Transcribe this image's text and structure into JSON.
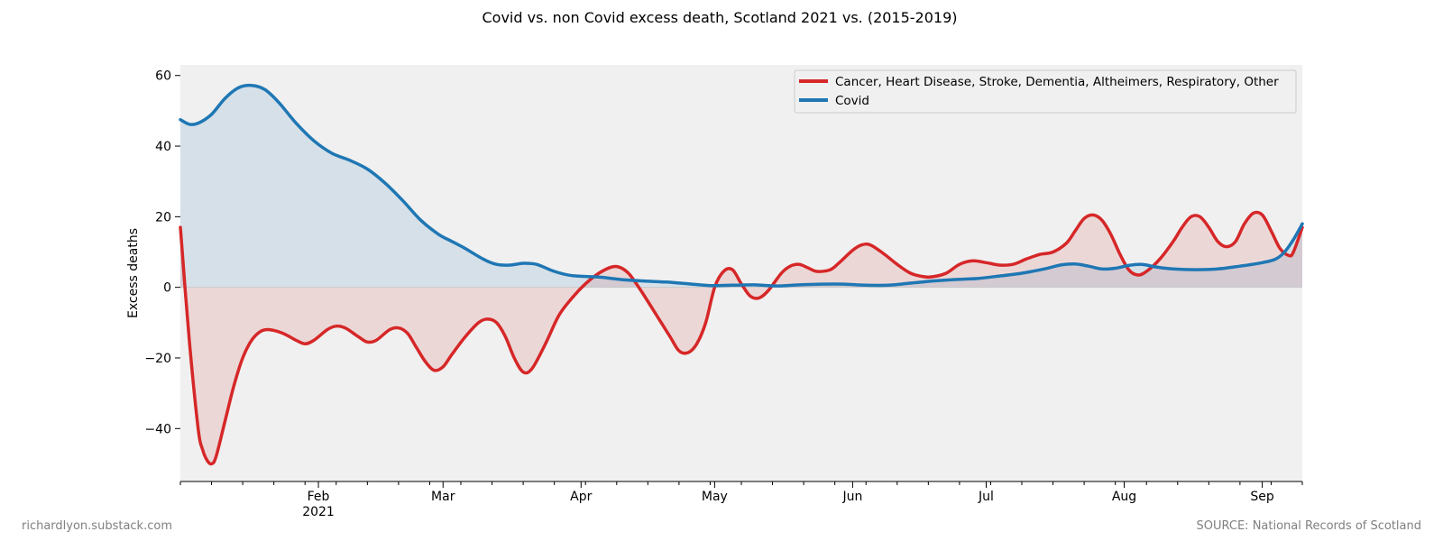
{
  "chart_data": {
    "type": "area",
    "title": "Covid vs. non Covid excess death, Scotland 2021 vs. (2015-2019)",
    "xlabel": "",
    "ylabel": "Excess deaths",
    "ylim": [
      -55,
      63
    ],
    "xlim": [
      "2021-01-01",
      "2021-09-10"
    ],
    "yticks": [
      -40,
      -20,
      0,
      20,
      40,
      60
    ],
    "ytick_labels": [
      "−40",
      "−20",
      "0",
      "20",
      "40",
      "60"
    ],
    "xticks": [
      {
        "date": "2021-02-01",
        "label": "Feb",
        "sublabel": "2021"
      },
      {
        "date": "2021-03-01",
        "label": "Mar",
        "sublabel": ""
      },
      {
        "date": "2021-04-01",
        "label": "Apr",
        "sublabel": ""
      },
      {
        "date": "2021-05-01",
        "label": "May",
        "sublabel": ""
      },
      {
        "date": "2021-06-01",
        "label": "Jun",
        "sublabel": ""
      },
      {
        "date": "2021-07-01",
        "label": "Jul",
        "sublabel": ""
      },
      {
        "date": "2021-08-01",
        "label": "Aug",
        "sublabel": ""
      },
      {
        "date": "2021-09-01",
        "label": "Sep",
        "sublabel": ""
      }
    ],
    "minor_ticks": [
      "2021-01-01",
      "2021-01-08",
      "2021-01-15",
      "2021-01-22",
      "2021-01-29",
      "2021-02-05",
      "2021-02-12",
      "2021-02-19",
      "2021-02-26",
      "2021-03-05",
      "2021-03-12",
      "2021-03-19",
      "2021-03-26",
      "2021-04-02",
      "2021-04-09",
      "2021-04-16",
      "2021-04-23",
      "2021-04-30",
      "2021-05-07",
      "2021-05-14",
      "2021-05-21",
      "2021-05-28",
      "2021-06-04",
      "2021-06-11",
      "2021-06-18",
      "2021-06-25",
      "2021-07-02",
      "2021-07-09",
      "2021-07-16",
      "2021-07-23",
      "2021-07-30",
      "2021-08-06",
      "2021-08-13",
      "2021-08-20",
      "2021-08-27",
      "2021-09-03",
      "2021-09-10"
    ],
    "grid": false,
    "legend_position": "top-right",
    "background": "#f0f0f0",
    "series": [
      {
        "name": "Cancer, Heart Disease, Stroke, Dementia, Altheimers, Respiratory, Other",
        "color": "#d62728",
        "fill": "#d62728",
        "points": [
          [
            "2021-01-01",
            17
          ],
          [
            "2021-01-03",
            -15
          ],
          [
            "2021-01-05",
            -40
          ],
          [
            "2021-01-06",
            -46
          ],
          [
            "2021-01-07",
            -49
          ],
          [
            "2021-01-08",
            -50
          ],
          [
            "2021-01-09",
            -48
          ],
          [
            "2021-01-11",
            -38
          ],
          [
            "2021-01-13",
            -28
          ],
          [
            "2021-01-15",
            -20
          ],
          [
            "2021-01-17",
            -15
          ],
          [
            "2021-01-19",
            -12.5
          ],
          [
            "2021-01-21",
            -12
          ],
          [
            "2021-01-24",
            -13
          ],
          [
            "2021-01-27",
            -15
          ],
          [
            "2021-01-29",
            -16
          ],
          [
            "2021-01-31",
            -15
          ],
          [
            "2021-02-03",
            -12
          ],
          [
            "2021-02-05",
            -11
          ],
          [
            "2021-02-07",
            -11.5
          ],
          [
            "2021-02-10",
            -14
          ],
          [
            "2021-02-12",
            -15.5
          ],
          [
            "2021-02-14",
            -15
          ],
          [
            "2021-02-17",
            -12
          ],
          [
            "2021-02-19",
            -11.5
          ],
          [
            "2021-02-21",
            -13
          ],
          [
            "2021-02-23",
            -17
          ],
          [
            "2021-02-25",
            -21
          ],
          [
            "2021-02-27",
            -23.5
          ],
          [
            "2021-03-01",
            -22.5
          ],
          [
            "2021-03-03",
            -19
          ],
          [
            "2021-03-06",
            -14
          ],
          [
            "2021-03-09",
            -10
          ],
          [
            "2021-03-11",
            -9
          ],
          [
            "2021-03-13",
            -10
          ],
          [
            "2021-03-15",
            -14
          ],
          [
            "2021-03-17",
            -20
          ],
          [
            "2021-03-19",
            -24
          ],
          [
            "2021-03-21",
            -23
          ],
          [
            "2021-03-24",
            -16
          ],
          [
            "2021-03-27",
            -8
          ],
          [
            "2021-03-30",
            -3
          ],
          [
            "2021-04-02",
            1
          ],
          [
            "2021-04-05",
            4
          ],
          [
            "2021-04-08",
            5.8
          ],
          [
            "2021-04-10",
            5.5
          ],
          [
            "2021-04-12",
            3.5
          ],
          [
            "2021-04-15",
            -2
          ],
          [
            "2021-04-18",
            -8
          ],
          [
            "2021-04-21",
            -14
          ],
          [
            "2021-04-23",
            -18
          ],
          [
            "2021-04-25",
            -18.5
          ],
          [
            "2021-04-27",
            -16
          ],
          [
            "2021-04-29",
            -10
          ],
          [
            "2021-05-01",
            0
          ],
          [
            "2021-05-03",
            4.5
          ],
          [
            "2021-05-05",
            5
          ],
          [
            "2021-05-07",
            1
          ],
          [
            "2021-05-09",
            -2.5
          ],
          [
            "2021-05-11",
            -3
          ],
          [
            "2021-05-13",
            -1
          ],
          [
            "2021-05-16",
            4
          ],
          [
            "2021-05-18",
            6
          ],
          [
            "2021-05-20",
            6.5
          ],
          [
            "2021-05-22",
            5.5
          ],
          [
            "2021-05-24",
            4.5
          ],
          [
            "2021-05-27",
            5
          ],
          [
            "2021-05-29",
            7
          ],
          [
            "2021-06-01",
            10.5
          ],
          [
            "2021-06-03",
            12
          ],
          [
            "2021-06-05",
            12
          ],
          [
            "2021-06-08",
            9.5
          ],
          [
            "2021-06-11",
            6.5
          ],
          [
            "2021-06-14",
            4
          ],
          [
            "2021-06-17",
            3
          ],
          [
            "2021-06-19",
            3
          ],
          [
            "2021-06-22",
            4
          ],
          [
            "2021-06-25",
            6.5
          ],
          [
            "2021-06-28",
            7.5
          ],
          [
            "2021-07-01",
            7
          ],
          [
            "2021-07-04",
            6.3
          ],
          [
            "2021-07-07",
            6.5
          ],
          [
            "2021-07-10",
            8
          ],
          [
            "2021-07-13",
            9.3
          ],
          [
            "2021-07-16",
            10
          ],
          [
            "2021-07-19",
            12.5
          ],
          [
            "2021-07-21",
            16
          ],
          [
            "2021-07-23",
            19.5
          ],
          [
            "2021-07-25",
            20.5
          ],
          [
            "2021-07-27",
            19
          ],
          [
            "2021-07-29",
            15
          ],
          [
            "2021-07-31",
            9.5
          ],
          [
            "2021-08-02",
            5
          ],
          [
            "2021-08-04",
            3.5
          ],
          [
            "2021-08-06",
            4.5
          ],
          [
            "2021-08-09",
            8
          ],
          [
            "2021-08-12",
            13
          ],
          [
            "2021-08-14",
            17
          ],
          [
            "2021-08-16",
            20
          ],
          [
            "2021-08-18",
            20
          ],
          [
            "2021-08-20",
            17
          ],
          [
            "2021-08-22",
            13
          ],
          [
            "2021-08-24",
            11.5
          ],
          [
            "2021-08-26",
            13
          ],
          [
            "2021-08-28",
            18
          ],
          [
            "2021-08-30",
            21
          ],
          [
            "2021-09-01",
            20.5
          ],
          [
            "2021-09-03",
            16
          ],
          [
            "2021-09-05",
            11
          ],
          [
            "2021-09-07",
            9
          ],
          [
            "2021-09-08",
            10
          ],
          [
            "2021-09-10",
            17
          ]
        ]
      },
      {
        "name": "Covid",
        "color": "#1f77b4",
        "fill": "#1f77b4",
        "points": [
          [
            "2021-01-01",
            47.5
          ],
          [
            "2021-01-03",
            46.2
          ],
          [
            "2021-01-05",
            46.5
          ],
          [
            "2021-01-08",
            49
          ],
          [
            "2021-01-11",
            53.5
          ],
          [
            "2021-01-14",
            56.5
          ],
          [
            "2021-01-17",
            57.2
          ],
          [
            "2021-01-20",
            56
          ],
          [
            "2021-01-23",
            52.5
          ],
          [
            "2021-01-27",
            46.5
          ],
          [
            "2021-01-31",
            41.5
          ],
          [
            "2021-02-04",
            38
          ],
          [
            "2021-02-08",
            36
          ],
          [
            "2021-02-12",
            33.5
          ],
          [
            "2021-02-16",
            29.5
          ],
          [
            "2021-02-20",
            24.5
          ],
          [
            "2021-02-24",
            19
          ],
          [
            "2021-02-28",
            15
          ],
          [
            "2021-03-03",
            13
          ],
          [
            "2021-03-06",
            11
          ],
          [
            "2021-03-10",
            8
          ],
          [
            "2021-03-13",
            6.5
          ],
          [
            "2021-03-16",
            6.3
          ],
          [
            "2021-03-19",
            6.8
          ],
          [
            "2021-03-22",
            6.5
          ],
          [
            "2021-03-26",
            4.5
          ],
          [
            "2021-03-30",
            3.3
          ],
          [
            "2021-04-05",
            2.9
          ],
          [
            "2021-04-10",
            2.2
          ],
          [
            "2021-04-15",
            1.8
          ],
          [
            "2021-04-20",
            1.5
          ],
          [
            "2021-04-25",
            1
          ],
          [
            "2021-04-30",
            0.5
          ],
          [
            "2021-05-05",
            0.6
          ],
          [
            "2021-05-10",
            0.7
          ],
          [
            "2021-05-15",
            0.4
          ],
          [
            "2021-05-20",
            0.7
          ],
          [
            "2021-05-25",
            0.9
          ],
          [
            "2021-05-30",
            0.9
          ],
          [
            "2021-06-04",
            0.6
          ],
          [
            "2021-06-09",
            0.6
          ],
          [
            "2021-06-14",
            1.2
          ],
          [
            "2021-06-19",
            1.8
          ],
          [
            "2021-06-24",
            2.2
          ],
          [
            "2021-06-29",
            2.5
          ],
          [
            "2021-07-04",
            3.2
          ],
          [
            "2021-07-09",
            4
          ],
          [
            "2021-07-14",
            5.2
          ],
          [
            "2021-07-18",
            6.4
          ],
          [
            "2021-07-21",
            6.6
          ],
          [
            "2021-07-24",
            6
          ],
          [
            "2021-07-27",
            5.2
          ],
          [
            "2021-07-30",
            5.4
          ],
          [
            "2021-08-02",
            6.2
          ],
          [
            "2021-08-05",
            6.5
          ],
          [
            "2021-08-08",
            5.8
          ],
          [
            "2021-08-12",
            5.2
          ],
          [
            "2021-08-17",
            5
          ],
          [
            "2021-08-22",
            5.2
          ],
          [
            "2021-08-27",
            6
          ],
          [
            "2021-09-01",
            7
          ],
          [
            "2021-09-04",
            8
          ],
          [
            "2021-09-06",
            10
          ],
          [
            "2021-09-08",
            13.5
          ],
          [
            "2021-09-10",
            18
          ]
        ]
      }
    ]
  },
  "footer": {
    "left": "richardlyon.substack.com",
    "right": "SOURCE: National Records of Scotland"
  }
}
